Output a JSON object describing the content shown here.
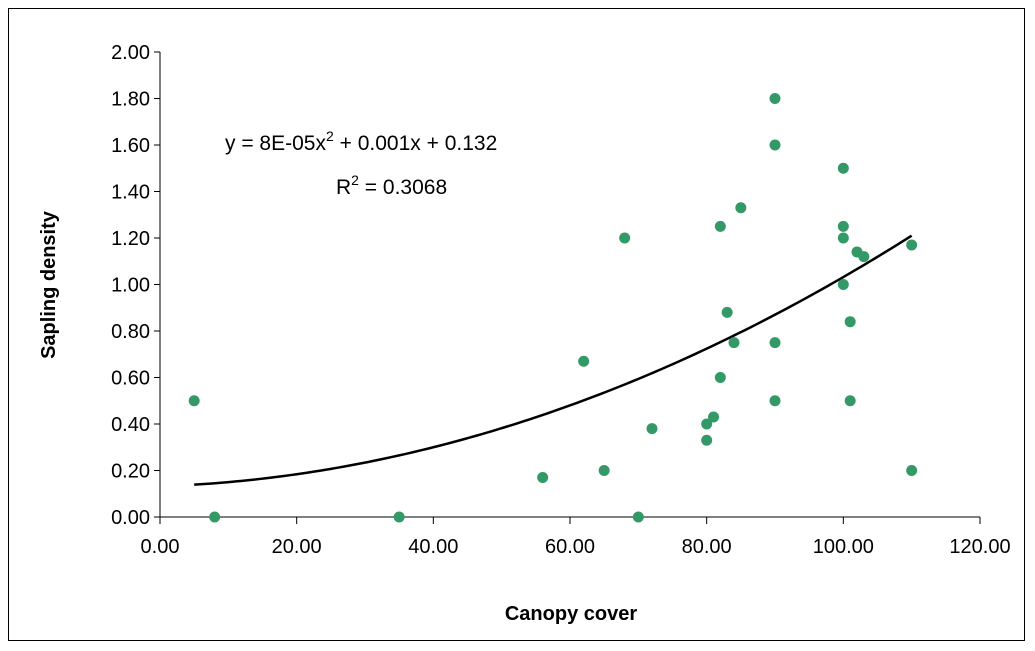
{
  "chart_data": {
    "type": "scatter",
    "xlabel": "Canopy cover",
    "ylabel": "Sapling density",
    "xlim": [
      0,
      120
    ],
    "ylim": [
      0,
      2
    ],
    "x_ticks": [
      "0.00",
      "20.00",
      "40.00",
      "60.00",
      "80.00",
      "100.00",
      "120.00"
    ],
    "y_ticks": [
      "0.00",
      "0.20",
      "0.40",
      "0.60",
      "0.80",
      "1.00",
      "1.20",
      "1.40",
      "1.60",
      "1.80",
      "2.00"
    ],
    "grid": false,
    "legend": "none",
    "point_color": "#339966",
    "trendline_color": "#000000",
    "points": [
      {
        "x": 5,
        "y": 0.5
      },
      {
        "x": 8,
        "y": 0.0
      },
      {
        "x": 35,
        "y": 0.0
      },
      {
        "x": 56,
        "y": 0.17
      },
      {
        "x": 62,
        "y": 0.67
      },
      {
        "x": 65,
        "y": 0.2
      },
      {
        "x": 68,
        "y": 1.2
      },
      {
        "x": 70,
        "y": 0.0
      },
      {
        "x": 72,
        "y": 0.38
      },
      {
        "x": 80,
        "y": 0.4
      },
      {
        "x": 80,
        "y": 0.33
      },
      {
        "x": 81,
        "y": 0.43
      },
      {
        "x": 82,
        "y": 0.6
      },
      {
        "x": 82,
        "y": 1.25
      },
      {
        "x": 83,
        "y": 0.88
      },
      {
        "x": 84,
        "y": 0.75
      },
      {
        "x": 85,
        "y": 1.33
      },
      {
        "x": 90,
        "y": 1.8
      },
      {
        "x": 90,
        "y": 1.6
      },
      {
        "x": 90,
        "y": 0.75
      },
      {
        "x": 90,
        "y": 0.5
      },
      {
        "x": 100,
        "y": 1.5
      },
      {
        "x": 100,
        "y": 1.25
      },
      {
        "x": 100,
        "y": 1.2
      },
      {
        "x": 100,
        "y": 1.0
      },
      {
        "x": 101,
        "y": 0.84
      },
      {
        "x": 101,
        "y": 0.5
      },
      {
        "x": 102,
        "y": 1.14
      },
      {
        "x": 103,
        "y": 1.12
      },
      {
        "x": 110,
        "y": 1.17
      },
      {
        "x": 110,
        "y": 0.2
      }
    ],
    "trendline": {
      "type": "polynomial",
      "coefficients": [
        8e-05,
        0.001,
        0.132
      ],
      "x_range": [
        5,
        110
      ]
    },
    "annotation": {
      "equation_prefix": "y = 8E-05x",
      "equation_exp": "2",
      "equation_suffix": " + 0.001x + 0.132",
      "r2_prefix": "R",
      "r2_exp": "2",
      "r2_suffix": " = 0.3068"
    }
  }
}
